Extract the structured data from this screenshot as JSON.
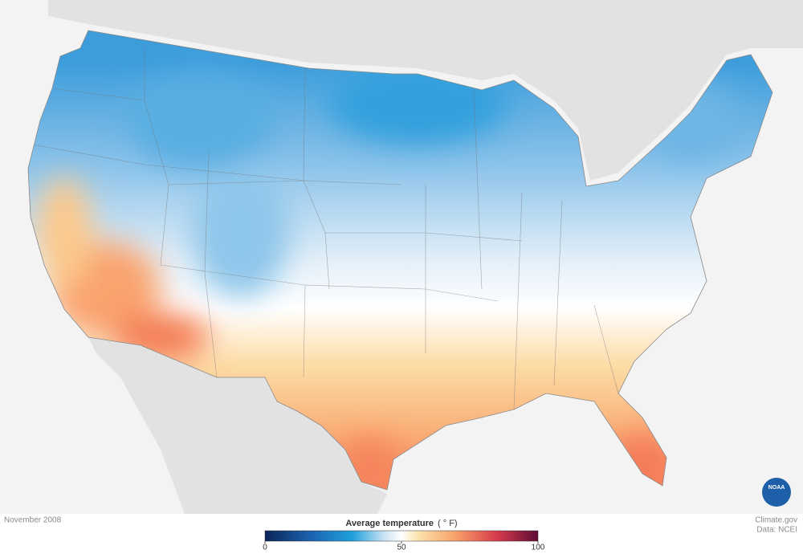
{
  "map": {
    "date": "November 2008",
    "legend": {
      "title": "Average temperature",
      "unit": "( ° F)",
      "range": [
        0,
        100
      ],
      "ticks": [
        0,
        50,
        100
      ]
    },
    "credit": "Climate.gov",
    "source": "Data: NCEI",
    "logo": "NOAA"
  }
}
